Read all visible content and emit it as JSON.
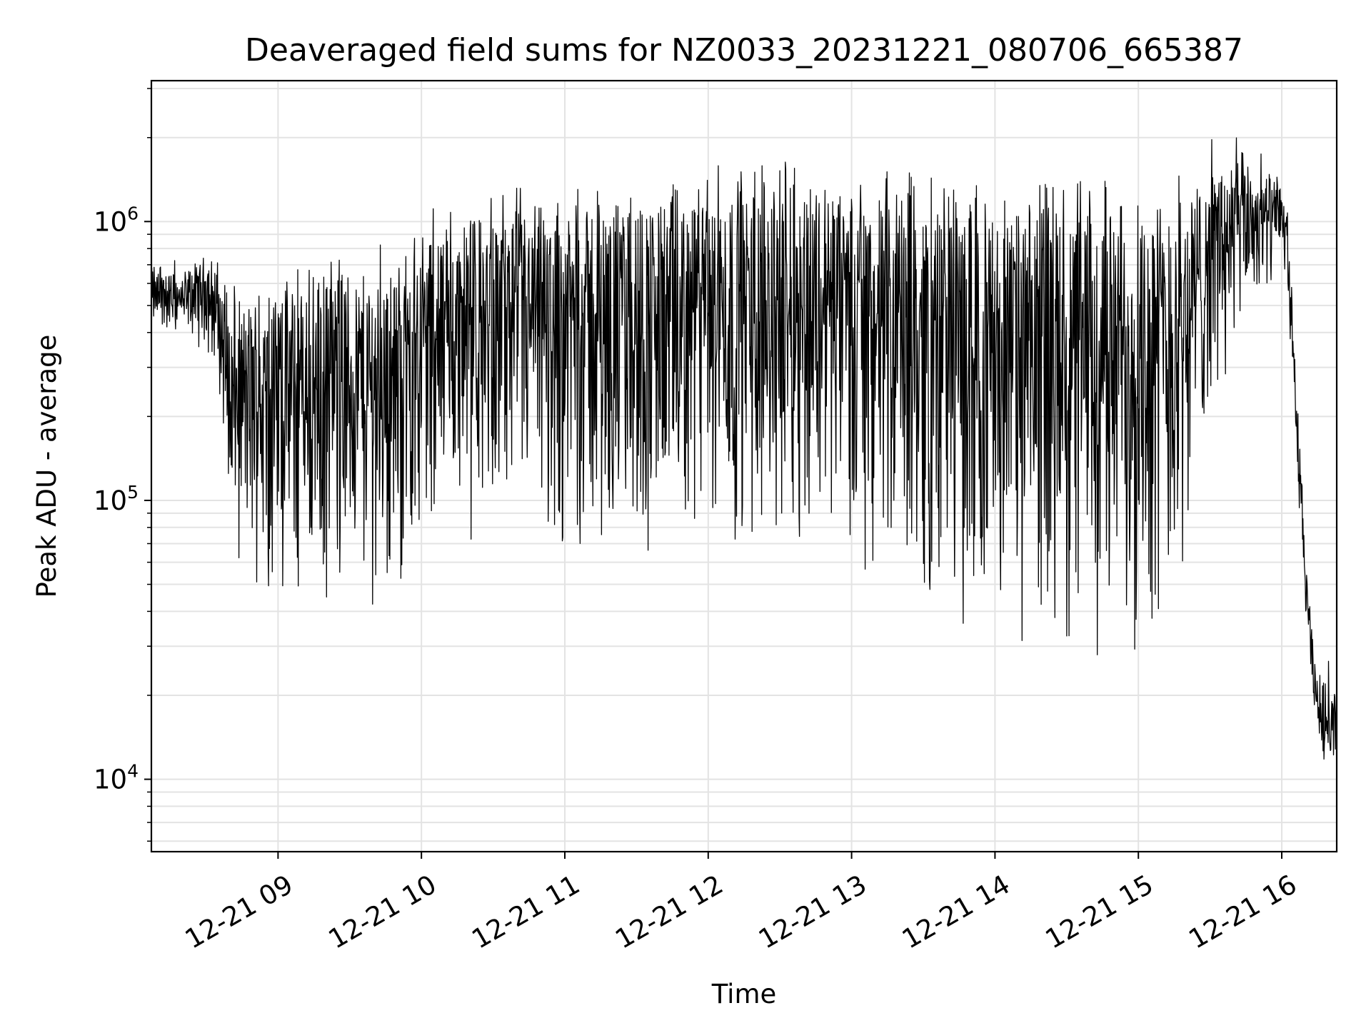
{
  "chart_data": {
    "type": "line",
    "title": "Deaveraged field sums for NZ0033_20231221_080706_665387",
    "xlabel": "Time",
    "ylabel": "Peak ADU - average",
    "yscale": "log",
    "ylim": [
      5500,
      3200000
    ],
    "xlim": [
      "2023-12-21 08:07",
      "2023-12-21 16:23"
    ],
    "grid": true,
    "color": "#000000",
    "x_ticks": [
      {
        "value": "2023-12-21 09:00",
        "label": "12-21 09"
      },
      {
        "value": "2023-12-21 10:00",
        "label": "12-21 10"
      },
      {
        "value": "2023-12-21 11:00",
        "label": "12-21 11"
      },
      {
        "value": "2023-12-21 12:00",
        "label": "12-21 12"
      },
      {
        "value": "2023-12-21 13:00",
        "label": "12-21 13"
      },
      {
        "value": "2023-12-21 14:00",
        "label": "12-21 14"
      },
      {
        "value": "2023-12-21 15:00",
        "label": "12-21 15"
      },
      {
        "value": "2023-12-21 16:00",
        "label": "12-21 16"
      }
    ],
    "y_ticks": [
      {
        "value": 10000,
        "base": "10",
        "exp": "4"
      },
      {
        "value": 100000,
        "base": "10",
        "exp": "5"
      },
      {
        "value": 1000000,
        "base": "10",
        "exp": "6"
      }
    ],
    "series_description": "dense fluctuating signal between upper and lower envelopes",
    "envelope": {
      "time": [
        "2023-12-21 08:07",
        "2023-12-21 08:20",
        "2023-12-21 08:30",
        "2023-12-21 08:35",
        "2023-12-21 08:40",
        "2023-12-21 09:00",
        "2023-12-21 09:30",
        "2023-12-21 09:50",
        "2023-12-21 10:00",
        "2023-12-21 10:30",
        "2023-12-21 11:00",
        "2023-12-21 11:30",
        "2023-12-21 12:00",
        "2023-12-21 12:30",
        "2023-12-21 12:50",
        "2023-12-21 13:00",
        "2023-12-21 13:20",
        "2023-12-21 13:40",
        "2023-12-21 14:00",
        "2023-12-21 14:30",
        "2023-12-21 14:50",
        "2023-12-21 15:00",
        "2023-12-21 15:15",
        "2023-12-21 15:20",
        "2023-12-21 15:30",
        "2023-12-21 15:45",
        "2023-12-21 15:55",
        "2023-12-21 16:00",
        "2023-12-21 16:02",
        "2023-12-21 16:05",
        "2023-12-21 16:08",
        "2023-12-21 16:12",
        "2023-12-21 16:15",
        "2023-12-21 16:20",
        "2023-12-21 16:23"
      ],
      "upper": [
        650000,
        600000,
        700000,
        650000,
        450000,
        550000,
        620000,
        650000,
        850000,
        1000000,
        1100000,
        1150000,
        1200000,
        1350000,
        1350000,
        1200000,
        1150000,
        1100000,
        1050000,
        1050000,
        1100000,
        1100000,
        1150000,
        1200000,
        1500000,
        1600000,
        1400000,
        1300000,
        1100000,
        400000,
        120000,
        35000,
        22000,
        20000,
        21000
      ],
      "lower": [
        400000,
        400000,
        380000,
        250000,
        60000,
        40000,
        40000,
        45000,
        70000,
        70000,
        60000,
        55000,
        60000,
        70000,
        70000,
        55000,
        38000,
        30000,
        30000,
        25000,
        25000,
        28000,
        40000,
        60000,
        200000,
        400000,
        500000,
        700000,
        600000,
        200000,
        60000,
        20000,
        13000,
        11000,
        12000
      ]
    }
  }
}
